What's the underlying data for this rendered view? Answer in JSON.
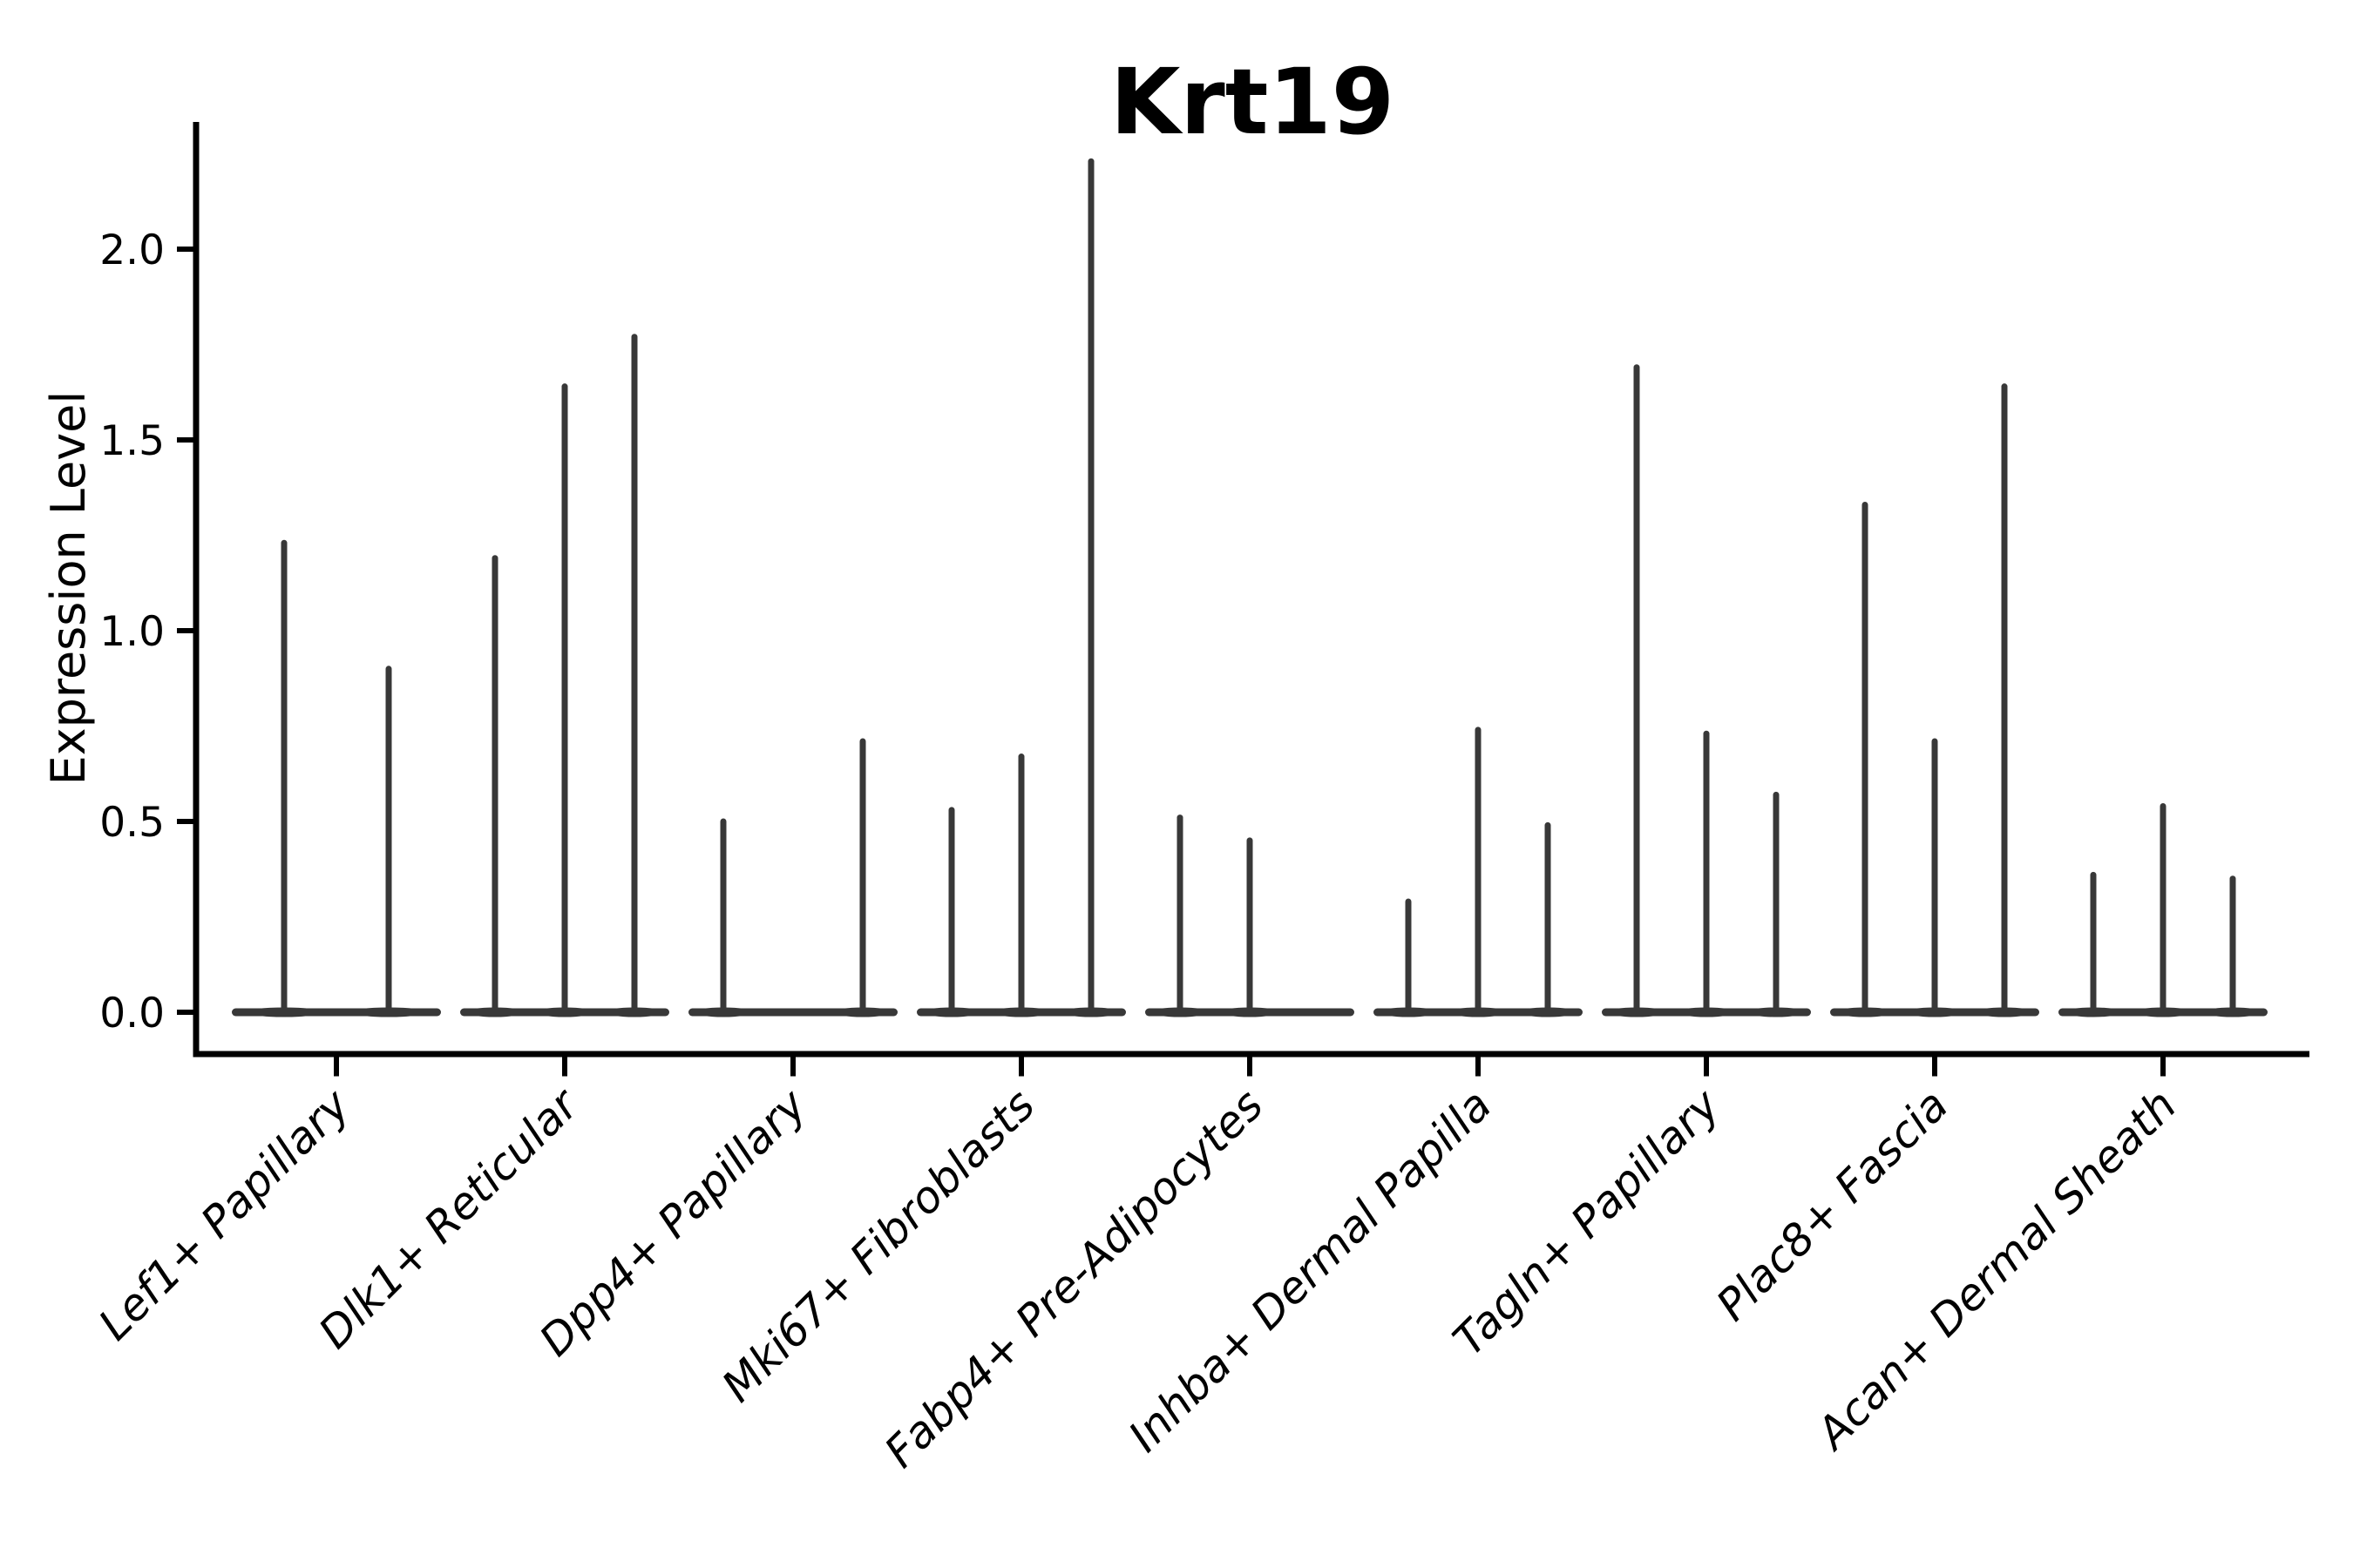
{
  "chart_data": {
    "type": "violin",
    "title": "Krt19",
    "ylabel": "Expression Level",
    "xlabel": "",
    "yticks": [
      "0.0",
      "0.5",
      "1.0",
      "1.5",
      "2.0"
    ],
    "ytick_values": [
      0.0,
      0.5,
      1.0,
      1.5,
      2.0
    ],
    "ylim": [
      -0.11,
      2.33
    ],
    "grid": false,
    "legend": "none",
    "x_tick_rotation": 45,
    "categories": [
      "Lef1+ Papillary",
      "Dlk1+ Reticular",
      "Dpp4+ Papillary",
      "Mki67+ Fibroblasts",
      "Fabp4+ Pre-Adipocytes",
      "Inhba+ Dermal Papilla",
      "Tagln+ Papillary",
      "Plac8+ Fascia",
      "Acan+ Dermal Sheath"
    ],
    "groups": [
      {
        "category": "Lef1+ Papillary",
        "violin_maxima": [
          1.23,
          0.9
        ]
      },
      {
        "category": "Dlk1+ Reticular",
        "violin_maxima": [
          1.19,
          1.64,
          1.77
        ]
      },
      {
        "category": "Dpp4+ Papillary",
        "violin_maxima": [
          0.5,
          0.0,
          0.71
        ]
      },
      {
        "category": "Mki67+ Fibroblasts",
        "violin_maxima": [
          0.53,
          0.67,
          2.23
        ]
      },
      {
        "category": "Fabp4+ Pre-Adipocytes",
        "violin_maxima": [
          0.51,
          0.45,
          0.0
        ]
      },
      {
        "category": "Inhba+ Dermal Papilla",
        "violin_maxima": [
          0.29,
          0.74,
          0.49
        ]
      },
      {
        "category": "Tagln+ Papillary",
        "violin_maxima": [
          1.69,
          0.73,
          0.57
        ]
      },
      {
        "category": "Plac8+ Fascia",
        "violin_maxima": [
          1.33,
          0.71,
          1.64
        ]
      },
      {
        "category": "Acan+ Dermal Sheath",
        "violin_maxima": [
          0.36,
          0.54,
          0.35
        ]
      }
    ],
    "colors": {
      "violin_line": "#383838",
      "axis": "#000000",
      "text": "#000000",
      "background": "#ffffff"
    }
  }
}
